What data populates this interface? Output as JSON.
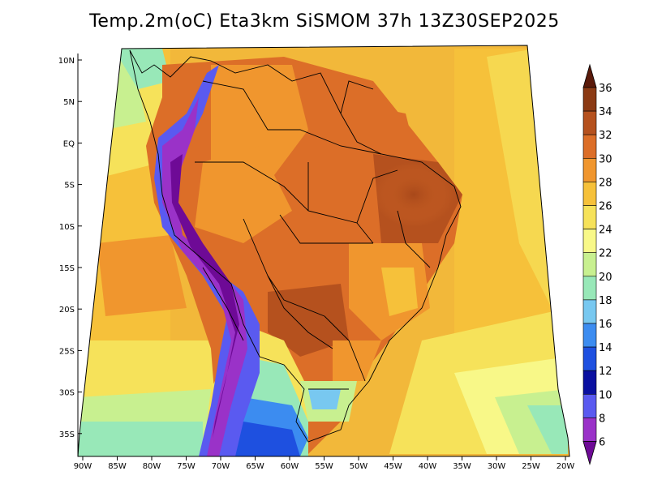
{
  "title": "Temp.2m(oC) Eta3km SiSMOM 37h 13Z30SEP2025",
  "map": {
    "lat_labels": [
      "10N",
      "5N",
      "EQ",
      "5S",
      "10S",
      "15S",
      "20S",
      "25S",
      "30S",
      "35S"
    ],
    "lon_labels": [
      "90W",
      "85W",
      "80W",
      "75W",
      "70W",
      "65W",
      "60W",
      "55W",
      "50W",
      "45W",
      "40W",
      "35W",
      "30W",
      "25W",
      "20W"
    ]
  },
  "colorbar": {
    "labels": [
      "36",
      "34",
      "32",
      "30",
      "28",
      "26",
      "24",
      "22",
      "20",
      "18",
      "16",
      "14",
      "12",
      "10",
      "8",
      "6"
    ],
    "colors": [
      "#5a1a0a",
      "#8b3a14",
      "#b5511e",
      "#dc6e28",
      "#f0962e",
      "#f6c13a",
      "#f6e25a",
      "#f8f888",
      "#c8f090",
      "#98e8b8",
      "#78c8f0",
      "#3c8cf0",
      "#1e50e0",
      "#0a10a0",
      "#5a5af0",
      "#9a32c8",
      "#6e0a96"
    ]
  }
}
